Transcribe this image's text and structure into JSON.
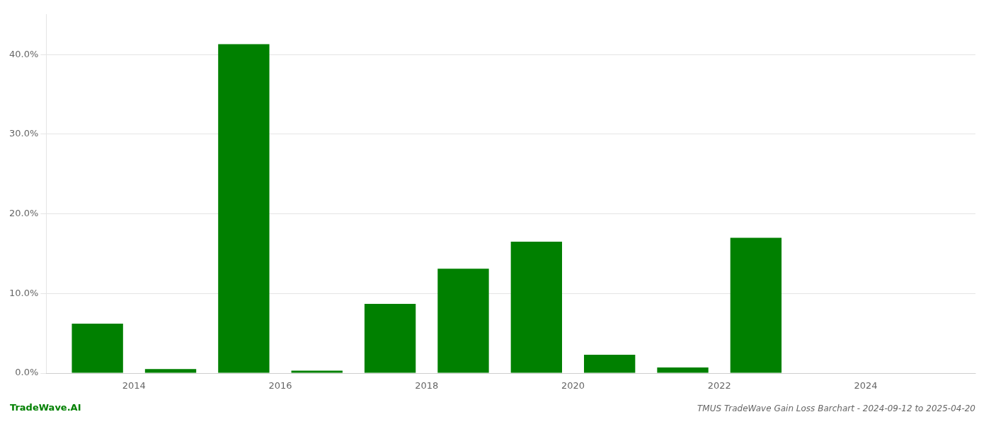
{
  "chart_data": {
    "type": "bar",
    "title": "TMUS TradeWave Gain Loss Barchart - 2024-09-12 to 2025-04-20",
    "annotations": [
      {
        "text": "TradeWave.AI",
        "color": "#008000"
      }
    ],
    "x": [
      2013,
      2014,
      2015,
      2016,
      2017,
      2018,
      2019,
      2020,
      2021,
      2022,
      2023
    ],
    "values": [
      0.062,
      0.005,
      0.413,
      0.003,
      0.087,
      0.131,
      0.165,
      0.023,
      0.007,
      0.17,
      0.0
    ],
    "color": "#008000",
    "xlim": [
      2012.3,
      2025.0
    ],
    "xticks": [
      {
        "value": 2013.5,
        "label": "2014"
      },
      {
        "value": 2015.5,
        "label": "2016"
      },
      {
        "value": 2017.5,
        "label": "2018"
      },
      {
        "value": 2019.5,
        "label": "2020"
      },
      {
        "value": 2021.5,
        "label": "2022"
      },
      {
        "value": 2023.5,
        "label": "2024"
      }
    ],
    "ylim": [
      0,
      0.45
    ],
    "yticks": [
      {
        "value": 0.0,
        "label": "0.0%"
      },
      {
        "value": 0.1,
        "label": "10.0%"
      },
      {
        "value": 0.2,
        "label": "20.0%"
      },
      {
        "value": 0.3,
        "label": "30.0%"
      },
      {
        "value": 0.4,
        "label": "40.0%"
      }
    ],
    "grid": "y"
  }
}
